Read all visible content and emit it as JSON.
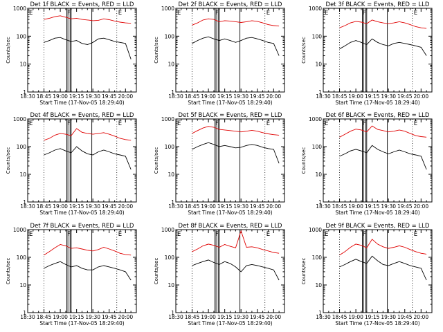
{
  "figure": {
    "rows": 3,
    "cols": 3,
    "colors": {
      "events": "#000000",
      "lld": "#e00000",
      "axes": "#000000"
    }
  },
  "chart_data": [
    {
      "type": "line",
      "title": "Det 1f BLACK = Events, RED = LLD",
      "xlabel": "Start Time (17-Nov-05 18:29:40)",
      "ylabel": "Counts/sec",
      "x_ticks": [
        "18:30",
        "18:45",
        "19:00",
        "19:15",
        "19:30",
        "19:45",
        "20:00"
      ],
      "y_ticks": [
        "1",
        "10",
        "100",
        "1000"
      ],
      "ylim": [
        1,
        1000
      ],
      "yscale": "log",
      "grid": false,
      "annotations": [
        "E",
        "F",
        "E"
      ],
      "x": [
        "18:45",
        "18:50",
        "18:55",
        "19:00",
        "19:05",
        "19:10",
        "19:15",
        "19:20",
        "19:25",
        "19:30",
        "19:35",
        "19:40",
        "19:45",
        "19:50",
        "19:55",
        "20:00",
        "20:05"
      ],
      "series": [
        {
          "name": "LLD",
          "values": [
            400,
            440,
            500,
            540,
            480,
            420,
            440,
            400,
            380,
            360,
            370,
            420,
            390,
            350,
            320,
            300,
            290
          ]
        },
        {
          "name": "Events",
          "values": [
            60,
            70,
            85,
            90,
            75,
            65,
            70,
            55,
            50,
            60,
            80,
            85,
            75,
            65,
            60,
            55,
            15
          ]
        }
      ]
    },
    {
      "type": "line",
      "title": "Det 2f BLACK = Events, RED = LLD",
      "xlabel": "Start Time (17-Nov-05 18:29:40)",
      "ylabel": "Counts/sec",
      "x_ticks": [
        "18:30",
        "18:45",
        "19:00",
        "19:15",
        "19:30",
        "19:45",
        "20:00"
      ],
      "y_ticks": [
        "1",
        "10",
        "100",
        "1000"
      ],
      "ylim": [
        1,
        1000
      ],
      "yscale": "log",
      "grid": false,
      "annotations": [
        "E",
        "F",
        "E"
      ],
      "x": [
        "18:45",
        "18:50",
        "18:55",
        "19:00",
        "19:05",
        "19:10",
        "19:15",
        "19:20",
        "19:25",
        "19:30",
        "19:35",
        "19:40",
        "19:45",
        "19:50",
        "19:55",
        "20:00",
        "20:05"
      ],
      "series": [
        {
          "name": "LLD",
          "values": [
            250,
            300,
            380,
            420,
            400,
            330,
            360,
            350,
            330,
            310,
            330,
            360,
            340,
            300,
            260,
            240,
            230
          ]
        },
        {
          "name": "Events",
          "values": [
            55,
            70,
            85,
            95,
            80,
            70,
            80,
            70,
            60,
            70,
            85,
            90,
            80,
            70,
            60,
            55,
            20
          ]
        }
      ]
    },
    {
      "type": "line",
      "title": "Det 3f BLACK = Events, RED = LLD",
      "xlabel": "Start Time (17-Nov-05 18:29:40)",
      "ylabel": "Counts/sec",
      "x_ticks": [
        "18:30",
        "18:45",
        "19:00",
        "19:15",
        "19:30",
        "19:45",
        "20:00"
      ],
      "y_ticks": [
        "1",
        "10",
        "100",
        "1000"
      ],
      "ylim": [
        1,
        1000
      ],
      "yscale": "log",
      "grid": false,
      "annotations": [
        "E",
        "F",
        "E"
      ],
      "x": [
        "18:45",
        "18:50",
        "18:55",
        "19:00",
        "19:05",
        "19:10",
        "19:15",
        "19:20",
        "19:25",
        "19:30",
        "19:35",
        "19:40",
        "19:45",
        "19:50",
        "19:55",
        "20:00",
        "20:05"
      ],
      "series": [
        {
          "name": "LLD",
          "values": [
            200,
            240,
            300,
            340,
            320,
            280,
            380,
            330,
            300,
            280,
            300,
            330,
            300,
            260,
            220,
            200,
            190
          ]
        },
        {
          "name": "Events",
          "values": [
            35,
            45,
            60,
            70,
            60,
            50,
            80,
            60,
            50,
            45,
            55,
            60,
            55,
            50,
            45,
            40,
            20
          ]
        }
      ]
    },
    {
      "type": "line",
      "title": "Det 4f BLACK = Events, RED = LLD",
      "xlabel": "Start Time (17-Nov-05 18:29:40)",
      "ylabel": "Counts/sec",
      "x_ticks": [
        "18:30",
        "18:45",
        "19:00",
        "19:15",
        "19:30",
        "19:45",
        "20:00"
      ],
      "y_ticks": [
        "1",
        "10",
        "100",
        "1000"
      ],
      "ylim": [
        1,
        1000
      ],
      "yscale": "log",
      "grid": false,
      "annotations": [
        "E",
        "F",
        "E"
      ],
      "x": [
        "18:45",
        "18:50",
        "18:55",
        "19:00",
        "19:05",
        "19:10",
        "19:15",
        "19:20",
        "19:25",
        "19:30",
        "19:35",
        "19:40",
        "19:45",
        "19:50",
        "19:55",
        "20:00",
        "20:05"
      ],
      "series": [
        {
          "name": "LLD",
          "values": [
            170,
            200,
            260,
            300,
            280,
            250,
            450,
            330,
            300,
            280,
            300,
            320,
            280,
            240,
            200,
            180,
            170
          ]
        },
        {
          "name": "Events",
          "values": [
            50,
            60,
            75,
            85,
            70,
            60,
            100,
            70,
            55,
            50,
            65,
            75,
            65,
            55,
            50,
            45,
            15
          ]
        }
      ]
    },
    {
      "type": "line",
      "title": "Det 5f BLACK = Events, RED = LLD",
      "xlabel": "Start Time (17-Nov-05 18:29:40)",
      "ylabel": "Counts/sec",
      "x_ticks": [
        "18:30",
        "18:45",
        "19:00",
        "19:15",
        "19:30",
        "19:45",
        "20:00"
      ],
      "y_ticks": [
        "1",
        "10",
        "100",
        "1000"
      ],
      "ylim": [
        1,
        1000
      ],
      "yscale": "log",
      "grid": false,
      "annotations": [
        "E",
        "F",
        "E"
      ],
      "x": [
        "18:45",
        "18:50",
        "18:55",
        "19:00",
        "19:05",
        "19:10",
        "19:15",
        "19:20",
        "19:25",
        "19:30",
        "19:35",
        "19:40",
        "19:45",
        "19:50",
        "19:55",
        "20:00",
        "20:05"
      ],
      "series": [
        {
          "name": "LLD",
          "values": [
            300,
            380,
            470,
            540,
            500,
            420,
            400,
            380,
            360,
            340,
            360,
            390,
            360,
            320,
            290,
            270,
            260
          ]
        },
        {
          "name": "Events",
          "values": [
            80,
            100,
            120,
            140,
            120,
            100,
            110,
            100,
            90,
            95,
            110,
            120,
            110,
            95,
            85,
            80,
            25
          ]
        }
      ]
    },
    {
      "type": "line",
      "title": "Det 6f BLACK = Events, RED = LLD",
      "xlabel": "Start Time (17-Nov-05 18:29:40)",
      "ylabel": "Counts/sec",
      "x_ticks": [
        "18:30",
        "18:45",
        "19:00",
        "19:15",
        "19:30",
        "19:45",
        "20:00"
      ],
      "y_ticks": [
        "1",
        "10",
        "100",
        "1000"
      ],
      "ylim": [
        1,
        1000
      ],
      "yscale": "log",
      "grid": false,
      "annotations": [
        "E",
        "F",
        "E"
      ],
      "x": [
        "18:45",
        "18:50",
        "18:55",
        "19:00",
        "19:05",
        "19:10",
        "19:15",
        "19:20",
        "19:25",
        "19:30",
        "19:35",
        "19:40",
        "19:45",
        "19:50",
        "19:55",
        "20:00",
        "20:05"
      ],
      "series": [
        {
          "name": "LLD",
          "values": [
            220,
            280,
            360,
            430,
            400,
            340,
            560,
            420,
            380,
            340,
            360,
            400,
            360,
            300,
            250,
            230,
            220
          ]
        },
        {
          "name": "Events",
          "values": [
            45,
            55,
            70,
            80,
            70,
            60,
            110,
            80,
            65,
            55,
            65,
            75,
            65,
            55,
            50,
            45,
            15
          ]
        }
      ]
    },
    {
      "type": "line",
      "title": "Det 7f BLACK = Events, RED = LLD",
      "xlabel": "Start Time (17-Nov-05 18:29:40)",
      "ylabel": "Counts/sec",
      "x_ticks": [
        "18:30",
        "18:45",
        "19:00",
        "19:15",
        "19:30",
        "19:45",
        "20:00"
      ],
      "y_ticks": [
        "1",
        "10",
        "100",
        "1000"
      ],
      "ylim": [
        1,
        1000
      ],
      "yscale": "log",
      "grid": false,
      "annotations": [
        "E",
        "F",
        "E"
      ],
      "x": [
        "18:45",
        "18:50",
        "18:55",
        "19:00",
        "19:05",
        "19:10",
        "19:15",
        "19:20",
        "19:25",
        "19:30",
        "19:35",
        "19:40",
        "19:45",
        "19:50",
        "19:55",
        "20:00",
        "20:05"
      ],
      "series": [
        {
          "name": "LLD",
          "values": [
            120,
            160,
            220,
            290,
            260,
            210,
            220,
            200,
            180,
            170,
            190,
            230,
            200,
            170,
            140,
            125,
            120
          ]
        },
        {
          "name": "Events",
          "values": [
            40,
            50,
            60,
            70,
            55,
            45,
            50,
            40,
            35,
            35,
            45,
            50,
            45,
            40,
            35,
            30,
            15
          ]
        }
      ]
    },
    {
      "type": "line",
      "title": "Det 8f BLACK = Events, RED = LLD",
      "xlabel": "Start Time (17-Nov-05 18:29:40)",
      "ylabel": "Counts/sec",
      "x_ticks": [
        "18:30",
        "18:45",
        "19:00",
        "19:15",
        "19:30",
        "19:45",
        "20:00"
      ],
      "y_ticks": [
        "1",
        "10",
        "100",
        "1000"
      ],
      "ylim": [
        1,
        1000
      ],
      "yscale": "log",
      "grid": false,
      "annotations": [
        "E",
        "F",
        "E"
      ],
      "x": [
        "18:45",
        "18:50",
        "18:55",
        "19:00",
        "19:05",
        "19:10",
        "19:15",
        "19:20",
        "19:25",
        "19:30",
        "19:35",
        "19:40",
        "19:45",
        "19:50",
        "19:55",
        "20:00",
        "20:05"
      ],
      "series": [
        {
          "name": "LLD",
          "values": [
            160,
            200,
            260,
            300,
            270,
            230,
            290,
            250,
            220,
            900,
            230,
            240,
            220,
            190,
            170,
            150,
            140
          ]
        },
        {
          "name": "Events",
          "values": [
            50,
            60,
            70,
            80,
            65,
            55,
            70,
            60,
            45,
            30,
            50,
            55,
            50,
            45,
            40,
            35,
            15
          ]
        }
      ]
    },
    {
      "type": "line",
      "title": "Det 9f BLACK = Events, RED = LLD",
      "xlabel": "Start Time (17-Nov-05 18:29:40)",
      "ylabel": "Counts/sec",
      "x_ticks": [
        "18:30",
        "18:45",
        "19:00",
        "19:15",
        "19:30",
        "19:45",
        "20:00"
      ],
      "y_ticks": [
        "1",
        "10",
        "100",
        "1000"
      ],
      "ylim": [
        1,
        1000
      ],
      "yscale": "log",
      "grid": false,
      "annotations": [
        "E",
        "F",
        "E"
      ],
      "x": [
        "18:45",
        "18:50",
        "18:55",
        "19:00",
        "19:05",
        "19:10",
        "19:15",
        "19:20",
        "19:25",
        "19:30",
        "19:35",
        "19:40",
        "19:45",
        "19:50",
        "19:55",
        "20:00",
        "20:05"
      ],
      "series": [
        {
          "name": "LLD",
          "values": [
            120,
            160,
            230,
            300,
            270,
            220,
            450,
            300,
            240,
            210,
            230,
            260,
            230,
            190,
            160,
            140,
            130
          ]
        },
        {
          "name": "Events",
          "values": [
            45,
            55,
            70,
            85,
            70,
            60,
            110,
            75,
            55,
            50,
            60,
            70,
            60,
            50,
            45,
            40,
            15
          ]
        }
      ]
    }
  ]
}
